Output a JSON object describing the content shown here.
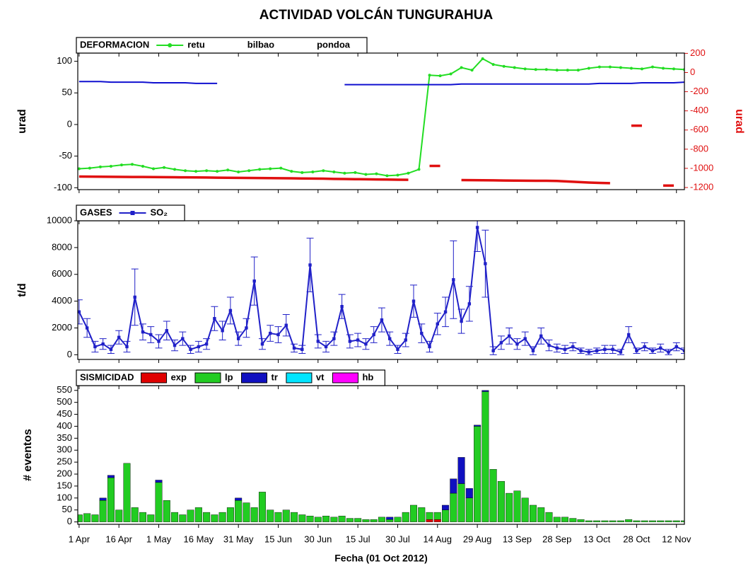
{
  "chart_data": [
    {
      "type": "line",
      "title": "ACTIVIDAD VOLCÁN TUNGURAHUA",
      "panel": "DEFORMACION",
      "ylabel": "urad",
      "y2label": "urad",
      "xlim": [
        -0.5,
        228
      ],
      "ylim": [
        -103,
        113
      ],
      "yticks": [
        -100,
        -50,
        0,
        50,
        100
      ],
      "y2lim": [
        -1222,
        203
      ],
      "y2ticks": [
        -1200,
        -1000,
        -800,
        -600,
        -400,
        -200,
        0,
        200
      ],
      "x": [
        0,
        4,
        8,
        12,
        16,
        20,
        24,
        28,
        32,
        36,
        40,
        44,
        48,
        52,
        56,
        60,
        64,
        68,
        72,
        76,
        80,
        84,
        88,
        92,
        96,
        100,
        104,
        108,
        112,
        116,
        120,
        124,
        128,
        132,
        136,
        140,
        144,
        148,
        152,
        156,
        160,
        164,
        168,
        172,
        176,
        180,
        184,
        188,
        192,
        196,
        200,
        204,
        208,
        212,
        216,
        220,
        224,
        228
      ],
      "series": [
        {
          "name": "retu",
          "color": "#22dd22",
          "marker": "circle",
          "values": [
            -70,
            -69,
            -67,
            -66,
            -64,
            -63,
            -66,
            -70,
            -68,
            -71,
            -73,
            -74,
            -73,
            -74,
            -72,
            -75,
            -73,
            -71,
            -70,
            -69,
            -74,
            -76,
            -75,
            -73,
            -75,
            -77,
            -76,
            -79,
            -78,
            -81,
            -80,
            -77,
            -71,
            78,
            77,
            80,
            90,
            86,
            104,
            95,
            92,
            90,
            88,
            87,
            87,
            86,
            86,
            86,
            89,
            91,
            91,
            90,
            89,
            88,
            91,
            89,
            88,
            87
          ]
        },
        {
          "name": "bilbao",
          "color": "#1010d0",
          "values": [
            68,
            68,
            68,
            67,
            67,
            67,
            67,
            66,
            66,
            66,
            66,
            65,
            65,
            65,
            null,
            null,
            null,
            null,
            null,
            null,
            null,
            null,
            null,
            null,
            null,
            63,
            63,
            63,
            63,
            63,
            63,
            63,
            63,
            63,
            63,
            63,
            64,
            64,
            64,
            64,
            64,
            64,
            64,
            64,
            64,
            64,
            64,
            64,
            64,
            65,
            65,
            65,
            65,
            66,
            66,
            66,
            66,
            67
          ]
        },
        {
          "name": "pondoa",
          "color": "#e01010",
          "axis": "y2",
          "values": [
            -1085,
            -1086,
            -1087,
            -1088,
            -1089,
            -1090,
            -1090,
            -1091,
            -1092,
            -1093,
            -1094,
            -1095,
            -1096,
            -1097,
            -1098,
            -1099,
            -1100,
            -1101,
            -1102,
            -1103,
            -1104,
            -1106,
            -1107,
            -1108,
            -1110,
            -1111,
            -1113,
            -1114,
            -1116,
            -1117,
            -1119,
            -1120,
            null,
            -975,
            -975,
            null,
            -1122,
            -1123,
            -1124,
            -1125,
            -1127,
            -1128,
            -1129,
            -1130,
            -1130,
            -1132,
            -1137,
            -1143,
            -1148,
            -1152,
            -1155,
            null,
            -555,
            -555,
            null,
            -1180,
            -1180,
            null
          ]
        }
      ]
    },
    {
      "type": "line",
      "panel": "GASES",
      "ylabel": "t/d",
      "xlim": [
        -0.5,
        228
      ],
      "ylim": [
        -350,
        10000
      ],
      "yticks": [
        0,
        2000,
        4000,
        6000,
        8000,
        10000
      ],
      "x": [
        0,
        3,
        6,
        9,
        12,
        15,
        18,
        21,
        24,
        27,
        30,
        33,
        36,
        39,
        42,
        45,
        48,
        51,
        54,
        57,
        60,
        63,
        66,
        69,
        72,
        75,
        78,
        81,
        84,
        87,
        90,
        93,
        96,
        99,
        102,
        105,
        108,
        111,
        114,
        117,
        120,
        123,
        126,
        129,
        132,
        135,
        138,
        141,
        144,
        147,
        150,
        153,
        156,
        159,
        162,
        165,
        168,
        171,
        174,
        177,
        180,
        183,
        186,
        189,
        192,
        195,
        198,
        201,
        204,
        207,
        210,
        213,
        216,
        219,
        222,
        225,
        228
      ],
      "series": [
        {
          "name": "SO₂",
          "color": "#2020c8",
          "marker": "square",
          "values": [
            3200,
            2000,
            600,
            800,
            400,
            1300,
            600,
            4300,
            1700,
            1500,
            1000,
            1800,
            700,
            1200,
            400,
            600,
            800,
            2700,
            1800,
            3300,
            1200,
            2000,
            5500,
            800,
            1600,
            1500,
            2200,
            500,
            400,
            6700,
            1000,
            600,
            1200,
            3600,
            1000,
            1100,
            800,
            1500,
            2600,
            1200,
            400,
            1100,
            4000,
            1600,
            600,
            2300,
            3200,
            5600,
            2500,
            3800,
            9500,
            6800,
            300,
            900,
            1400,
            800,
            1200,
            300,
            1400,
            700,
            500,
            400,
            600,
            300,
            200,
            300,
            400,
            400,
            200,
            1500,
            300,
            600,
            300,
            500,
            200,
            600,
            300
          ],
          "errors": [
            900,
            700,
            400,
            400,
            300,
            500,
            400,
            2100,
            600,
            600,
            500,
            700,
            400,
            500,
            300,
            400,
            400,
            900,
            700,
            1000,
            500,
            700,
            1800,
            400,
            600,
            600,
            800,
            300,
            300,
            2000,
            500,
            400,
            500,
            900,
            500,
            500,
            400,
            600,
            900,
            500,
            300,
            500,
            1200,
            700,
            400,
            800,
            1100,
            2900,
            900,
            1300,
            1800,
            2500,
            300,
            500,
            600,
            400,
            500,
            300,
            600,
            400,
            300,
            300,
            300,
            200,
            200,
            200,
            300,
            300,
            200,
            600,
            200,
            300,
            200,
            300,
            200,
            300,
            200
          ]
        }
      ]
    },
    {
      "type": "bar",
      "panel": "SISMICIDAD",
      "ylabel": "# eventos",
      "xlabel": "Fecha (01 Oct 2012)",
      "xlim": [
        -0.5,
        228
      ],
      "xticks": [
        {
          "value": 0,
          "label": "1 Apr"
        },
        {
          "value": 15,
          "label": "16 Apr"
        },
        {
          "value": 30,
          "label": "1 May"
        },
        {
          "value": 45,
          "label": "16 May"
        },
        {
          "value": 60,
          "label": "31 May"
        },
        {
          "value": 75,
          "label": "15 Jun"
        },
        {
          "value": 90,
          "label": "30 Jun"
        },
        {
          "value": 105,
          "label": "15 Jul"
        },
        {
          "value": 120,
          "label": "30 Jul"
        },
        {
          "value": 135,
          "label": "14 Aug"
        },
        {
          "value": 150,
          "label": "29 Aug"
        },
        {
          "value": 165,
          "label": "13 Sep"
        },
        {
          "value": 180,
          "label": "28 Sep"
        },
        {
          "value": 195,
          "label": "13 Oct"
        },
        {
          "value": 210,
          "label": "28 Oct"
        },
        {
          "value": 225,
          "label": "12 Nov"
        }
      ],
      "ylim": [
        -10,
        570
      ],
      "yticks": [
        0,
        50,
        100,
        150,
        200,
        250,
        300,
        350,
        400,
        450,
        500,
        550
      ],
      "x": [
        0,
        3,
        6,
        9,
        12,
        15,
        18,
        21,
        24,
        27,
        30,
        33,
        36,
        39,
        42,
        45,
        48,
        51,
        54,
        57,
        60,
        63,
        66,
        69,
        72,
        75,
        78,
        81,
        84,
        87,
        90,
        93,
        96,
        99,
        102,
        105,
        108,
        111,
        114,
        117,
        120,
        123,
        126,
        129,
        132,
        135,
        138,
        141,
        144,
        147,
        150,
        153,
        156,
        159,
        162,
        165,
        168,
        171,
        174,
        177,
        180,
        183,
        186,
        189,
        192,
        195,
        198,
        201,
        204,
        207,
        210,
        213,
        216,
        219,
        222,
        225,
        228
      ],
      "series": [
        {
          "name": "exp",
          "color": "#e00000",
          "values": [
            0,
            0,
            0,
            0,
            0,
            0,
            0,
            0,
            0,
            0,
            0,
            0,
            0,
            0,
            0,
            0,
            0,
            0,
            0,
            0,
            0,
            0,
            0,
            0,
            0,
            0,
            0,
            0,
            0,
            0,
            0,
            0,
            0,
            0,
            0,
            0,
            0,
            0,
            0,
            0,
            0,
            0,
            0,
            0,
            10,
            10,
            0,
            0,
            0,
            0,
            0,
            0,
            0,
            0,
            0,
            0,
            0,
            0,
            0,
            0,
            0,
            0,
            0,
            0,
            0,
            0,
            0,
            0,
            0,
            0,
            0,
            0,
            0,
            0,
            0,
            0,
            0
          ]
        },
        {
          "name": "lp",
          "color": "#22cc22",
          "values": [
            30,
            35,
            30,
            90,
            185,
            50,
            245,
            60,
            40,
            30,
            165,
            90,
            40,
            30,
            50,
            60,
            40,
            30,
            40,
            60,
            90,
            80,
            60,
            125,
            50,
            40,
            50,
            40,
            30,
            25,
            20,
            25,
            20,
            25,
            15,
            15,
            10,
            10,
            20,
            10,
            20,
            40,
            70,
            60,
            30,
            30,
            50,
            120,
            160,
            100,
            400,
            545,
            220,
            170,
            120,
            130,
            100,
            70,
            60,
            40,
            20,
            20,
            15,
            10,
            5,
            5,
            5,
            5,
            5,
            10,
            5,
            5,
            5,
            5,
            5,
            5,
            5
          ]
        },
        {
          "name": "tr",
          "color": "#1010c0",
          "values": [
            0,
            0,
            0,
            10,
            10,
            0,
            0,
            0,
            0,
            0,
            10,
            0,
            0,
            0,
            0,
            0,
            0,
            0,
            0,
            0,
            10,
            0,
            0,
            0,
            0,
            0,
            0,
            0,
            0,
            0,
            0,
            0,
            0,
            0,
            0,
            0,
            0,
            0,
            0,
            10,
            0,
            0,
            0,
            0,
            0,
            0,
            20,
            60,
            110,
            40,
            5,
            5,
            0,
            0,
            0,
            0,
            0,
            0,
            0,
            0,
            0,
            0,
            0,
            0,
            0,
            0,
            0,
            0,
            0,
            0,
            0,
            0,
            0,
            0,
            0,
            0,
            0
          ]
        },
        {
          "name": "vt",
          "color": "#00e5ff",
          "values": [
            0,
            0,
            0,
            0,
            0,
            0,
            0,
            0,
            0,
            0,
            0,
            0,
            0,
            0,
            0,
            0,
            0,
            0,
            0,
            0,
            0,
            0,
            0,
            0,
            0,
            0,
            0,
            0,
            0,
            0,
            0,
            0,
            0,
            0,
            0,
            0,
            0,
            0,
            0,
            0,
            0,
            0,
            0,
            0,
            0,
            0,
            0,
            0,
            0,
            0,
            0,
            0,
            0,
            0,
            0,
            0,
            0,
            0,
            0,
            0,
            0,
            0,
            0,
            0,
            0,
            0,
            0,
            0,
            0,
            0,
            0,
            0,
            0,
            0,
            0,
            0,
            0
          ]
        },
        {
          "name": "hb",
          "color": "#ff00ff",
          "values": [
            0,
            0,
            0,
            0,
            0,
            0,
            0,
            0,
            0,
            0,
            0,
            0,
            0,
            0,
            0,
            0,
            0,
            0,
            0,
            0,
            0,
            0,
            0,
            0,
            0,
            0,
            0,
            0,
            0,
            0,
            0,
            0,
            0,
            0,
            0,
            0,
            0,
            0,
            0,
            0,
            0,
            0,
            0,
            0,
            0,
            0,
            0,
            0,
            0,
            0,
            0,
            0,
            0,
            0,
            0,
            0,
            0,
            0,
            0,
            0,
            0,
            0,
            0,
            0,
            0,
            0,
            0,
            0,
            0,
            0,
            0,
            0,
            0,
            0,
            0,
            0,
            0
          ]
        }
      ]
    }
  ]
}
